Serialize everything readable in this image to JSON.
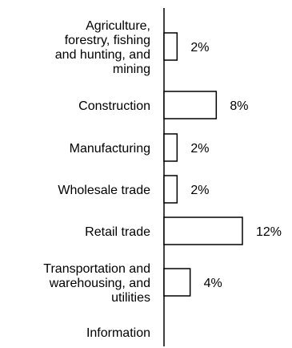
{
  "chart_data": {
    "type": "bar",
    "orientation": "horizontal",
    "categories": [
      [
        "Agriculture,",
        "forestry, fishing",
        "and hunting, and",
        "mining"
      ],
      [
        "Construction"
      ],
      [
        "Manufacturing"
      ],
      [
        "Wholesale trade"
      ],
      [
        "Retail trade"
      ],
      [
        "Transportation and",
        "warehousing, and",
        "utilities"
      ],
      [
        "Information"
      ]
    ],
    "values": [
      2,
      8,
      2,
      2,
      12,
      4,
      null
    ],
    "data_labels": [
      "2%",
      "8%",
      "2%",
      "2%",
      "12%",
      "4%",
      ""
    ],
    "unit": "%",
    "title": "",
    "xlabel": "",
    "ylabel": "",
    "xlim": [
      0,
      12
    ],
    "grid": false,
    "legend": "none",
    "colors": {
      "bar_fill": "#ffffff",
      "bar_stroke": "#000000",
      "axis": "#000000",
      "text": "#000000"
    }
  }
}
